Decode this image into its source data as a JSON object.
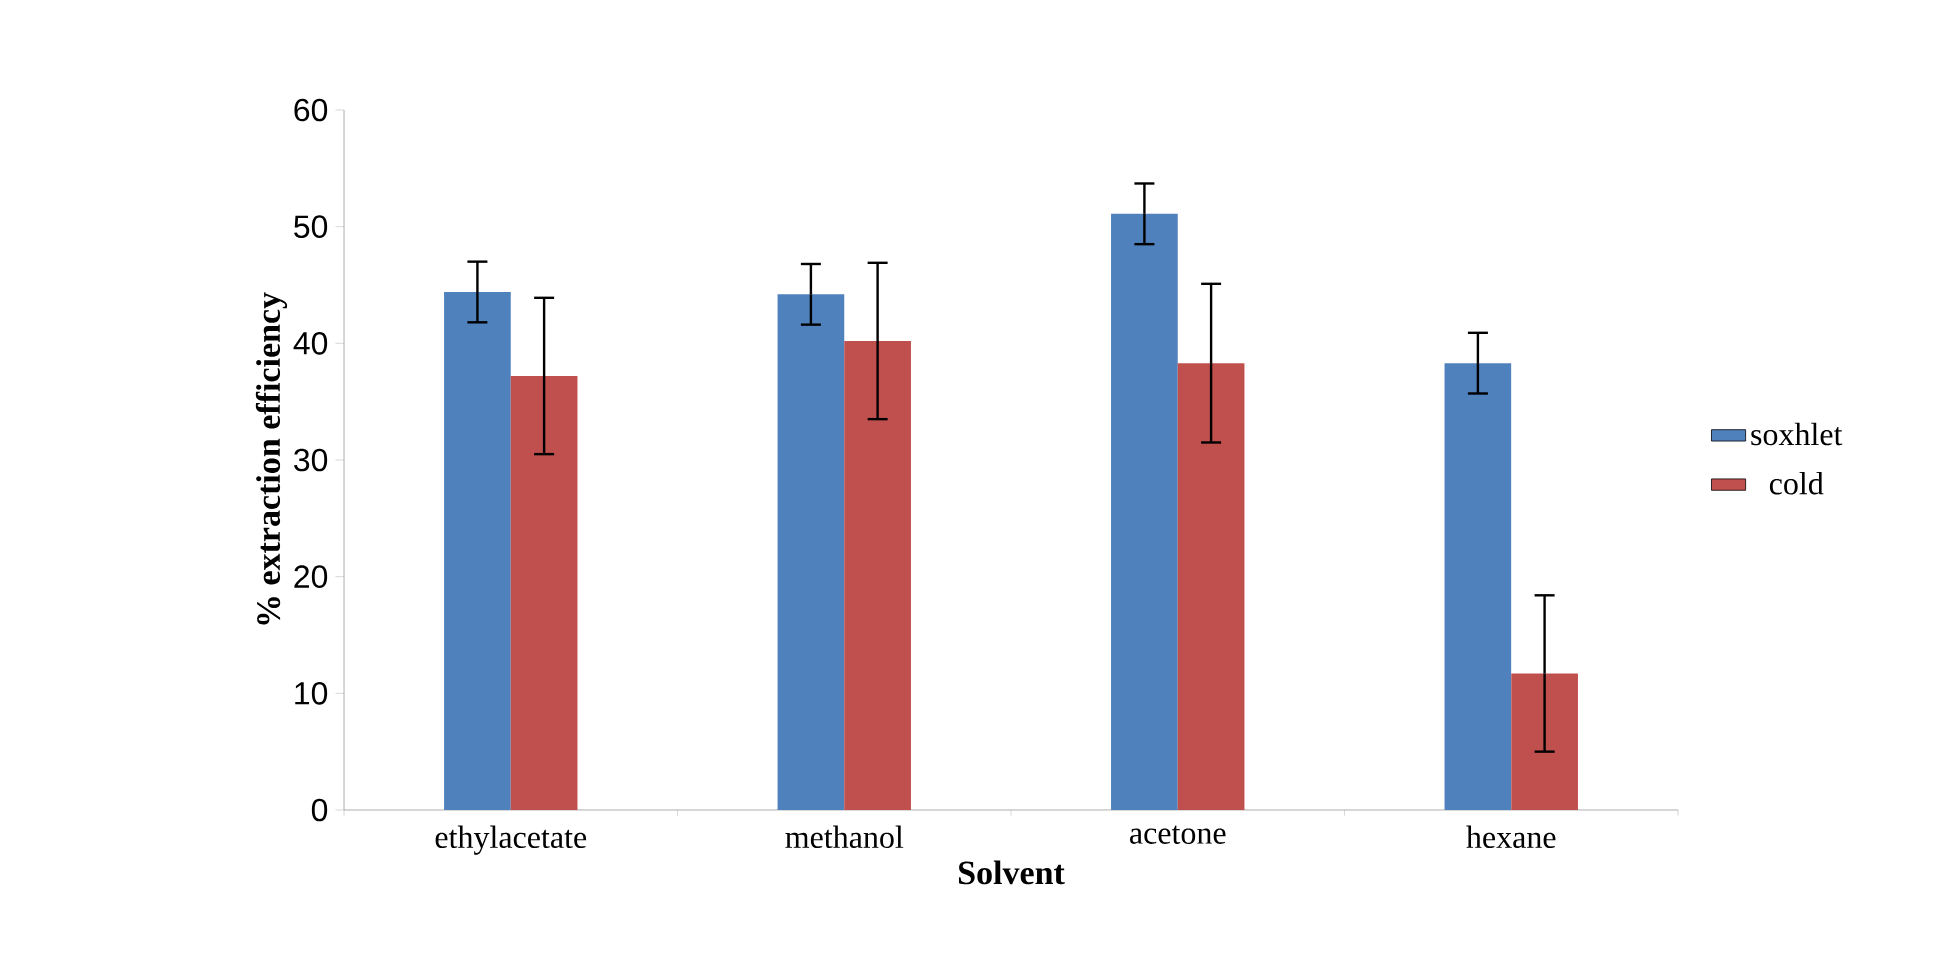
{
  "chart_data": {
    "type": "bar",
    "xlabel": "Solvent",
    "ylabel": "% extraction efficiency",
    "categories": [
      "ethylacetate",
      "methanol",
      "acetone",
      "hexane"
    ],
    "series": [
      {
        "name": "soxhlet",
        "color": "#4f81bd",
        "values": [
          44.4,
          44.2,
          51.1,
          38.3
        ],
        "errors": [
          2.6,
          2.6,
          2.6,
          2.6
        ]
      },
      {
        "name": "cold",
        "color": "#c0504d",
        "values": [
          37.2,
          40.2,
          38.3,
          11.7
        ],
        "errors": [
          6.7,
          6.7,
          6.8,
          6.7
        ]
      }
    ],
    "ylim": [
      0,
      60
    ],
    "yticks": [
      0,
      10,
      20,
      30,
      40,
      50,
      60
    ],
    "legend": "right",
    "grid": false
  }
}
